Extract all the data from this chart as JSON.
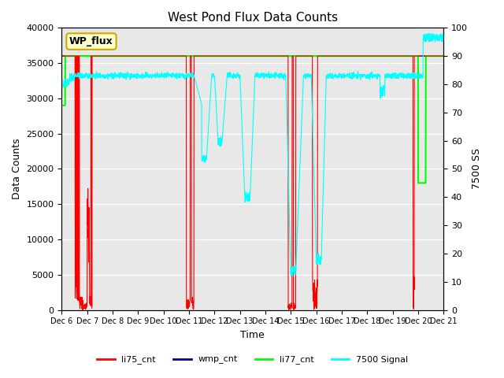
{
  "title": "West Pond Flux Data Counts",
  "xlabel": "Time",
  "ylabel_left": "Data Counts",
  "ylabel_right": "7500 SS",
  "ylim_left": [
    0,
    40000
  ],
  "ylim_right": [
    0,
    100
  ],
  "xlim": [
    0,
    15
  ],
  "xtick_labels": [
    "Dec 6",
    "Dec 7",
    "Dec 8",
    "Dec 9",
    "Dec 10",
    "Dec 11",
    "Dec 12",
    "Dec 13",
    "Dec 14",
    "Dec 15",
    "Dec 16",
    "Dec 17",
    "Dec 18",
    "Dec 19",
    "Dec 20",
    "Dec 21"
  ],
  "bg_color": "#e8e8e8",
  "legend_box_text": "WP_flux",
  "legend_box_color": "#ffffcc",
  "legend_box_edge": "#ccaa00",
  "li75_color": "red",
  "wmp_color": "darkblue",
  "li77_color": "lime",
  "signal_color": "cyan"
}
